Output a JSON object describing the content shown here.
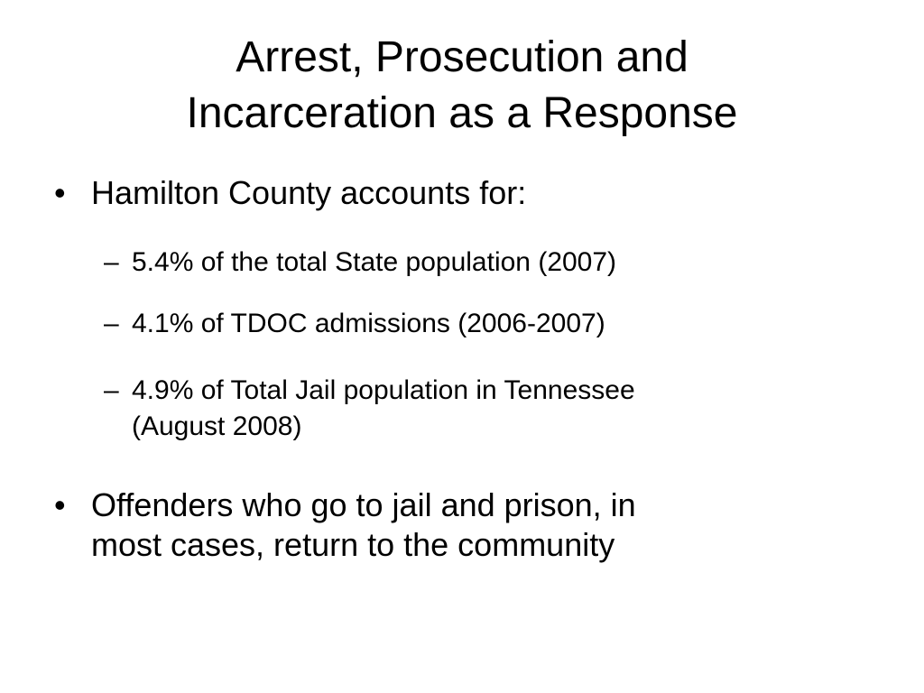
{
  "slide": {
    "title_line1": "Arrest, Prosecution and",
    "title_line2": "Incarceration as a Response",
    "bullets": [
      {
        "marker": "•",
        "text": "Hamilton County accounts for:",
        "sub": [
          {
            "marker": "–",
            "text": "5.4% of the total State population (2007)"
          },
          {
            "marker": "–",
            "text": "4.1% of TDOC admissions (2006-2007)"
          },
          {
            "marker": "–",
            "line1": "4.9% of Total Jail population in Tennessee",
            "line2": "(August 2008)"
          }
        ]
      },
      {
        "marker": "•",
        "line1": "Offenders who go to jail and prison, in",
        "line2": "most cases, return to the community"
      }
    ]
  }
}
